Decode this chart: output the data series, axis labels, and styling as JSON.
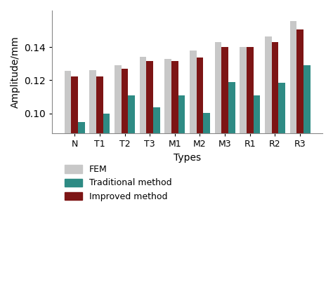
{
  "categories": [
    "N",
    "T1",
    "T2",
    "T3",
    "M1",
    "M2",
    "M3",
    "R1",
    "R2",
    "R3"
  ],
  "FEM": [
    0.1255,
    0.126,
    0.129,
    0.134,
    0.133,
    0.138,
    0.143,
    0.14,
    0.1465,
    0.1555
  ],
  "Traditional": [
    0.095,
    0.1,
    0.111,
    0.1035,
    0.111,
    0.1005,
    0.119,
    0.111,
    0.1185,
    0.129
  ],
  "Improved": [
    0.1225,
    0.1225,
    0.127,
    0.1315,
    0.1315,
    0.1335,
    0.14,
    0.14,
    0.143,
    0.1505
  ],
  "colors": {
    "FEM": "#c8c8c8",
    "Traditional": "#2e8b84",
    "Improved": "#7d1515"
  },
  "ylabel": "Amplitude/mm",
  "xlabel": "Types",
  "ylim": [
    0.088,
    0.162
  ],
  "yticks": [
    0.1,
    0.12,
    0.14
  ],
  "legend_labels": [
    "FEM",
    "Traditional method",
    "Improved method"
  ],
  "bar_width": 0.27
}
